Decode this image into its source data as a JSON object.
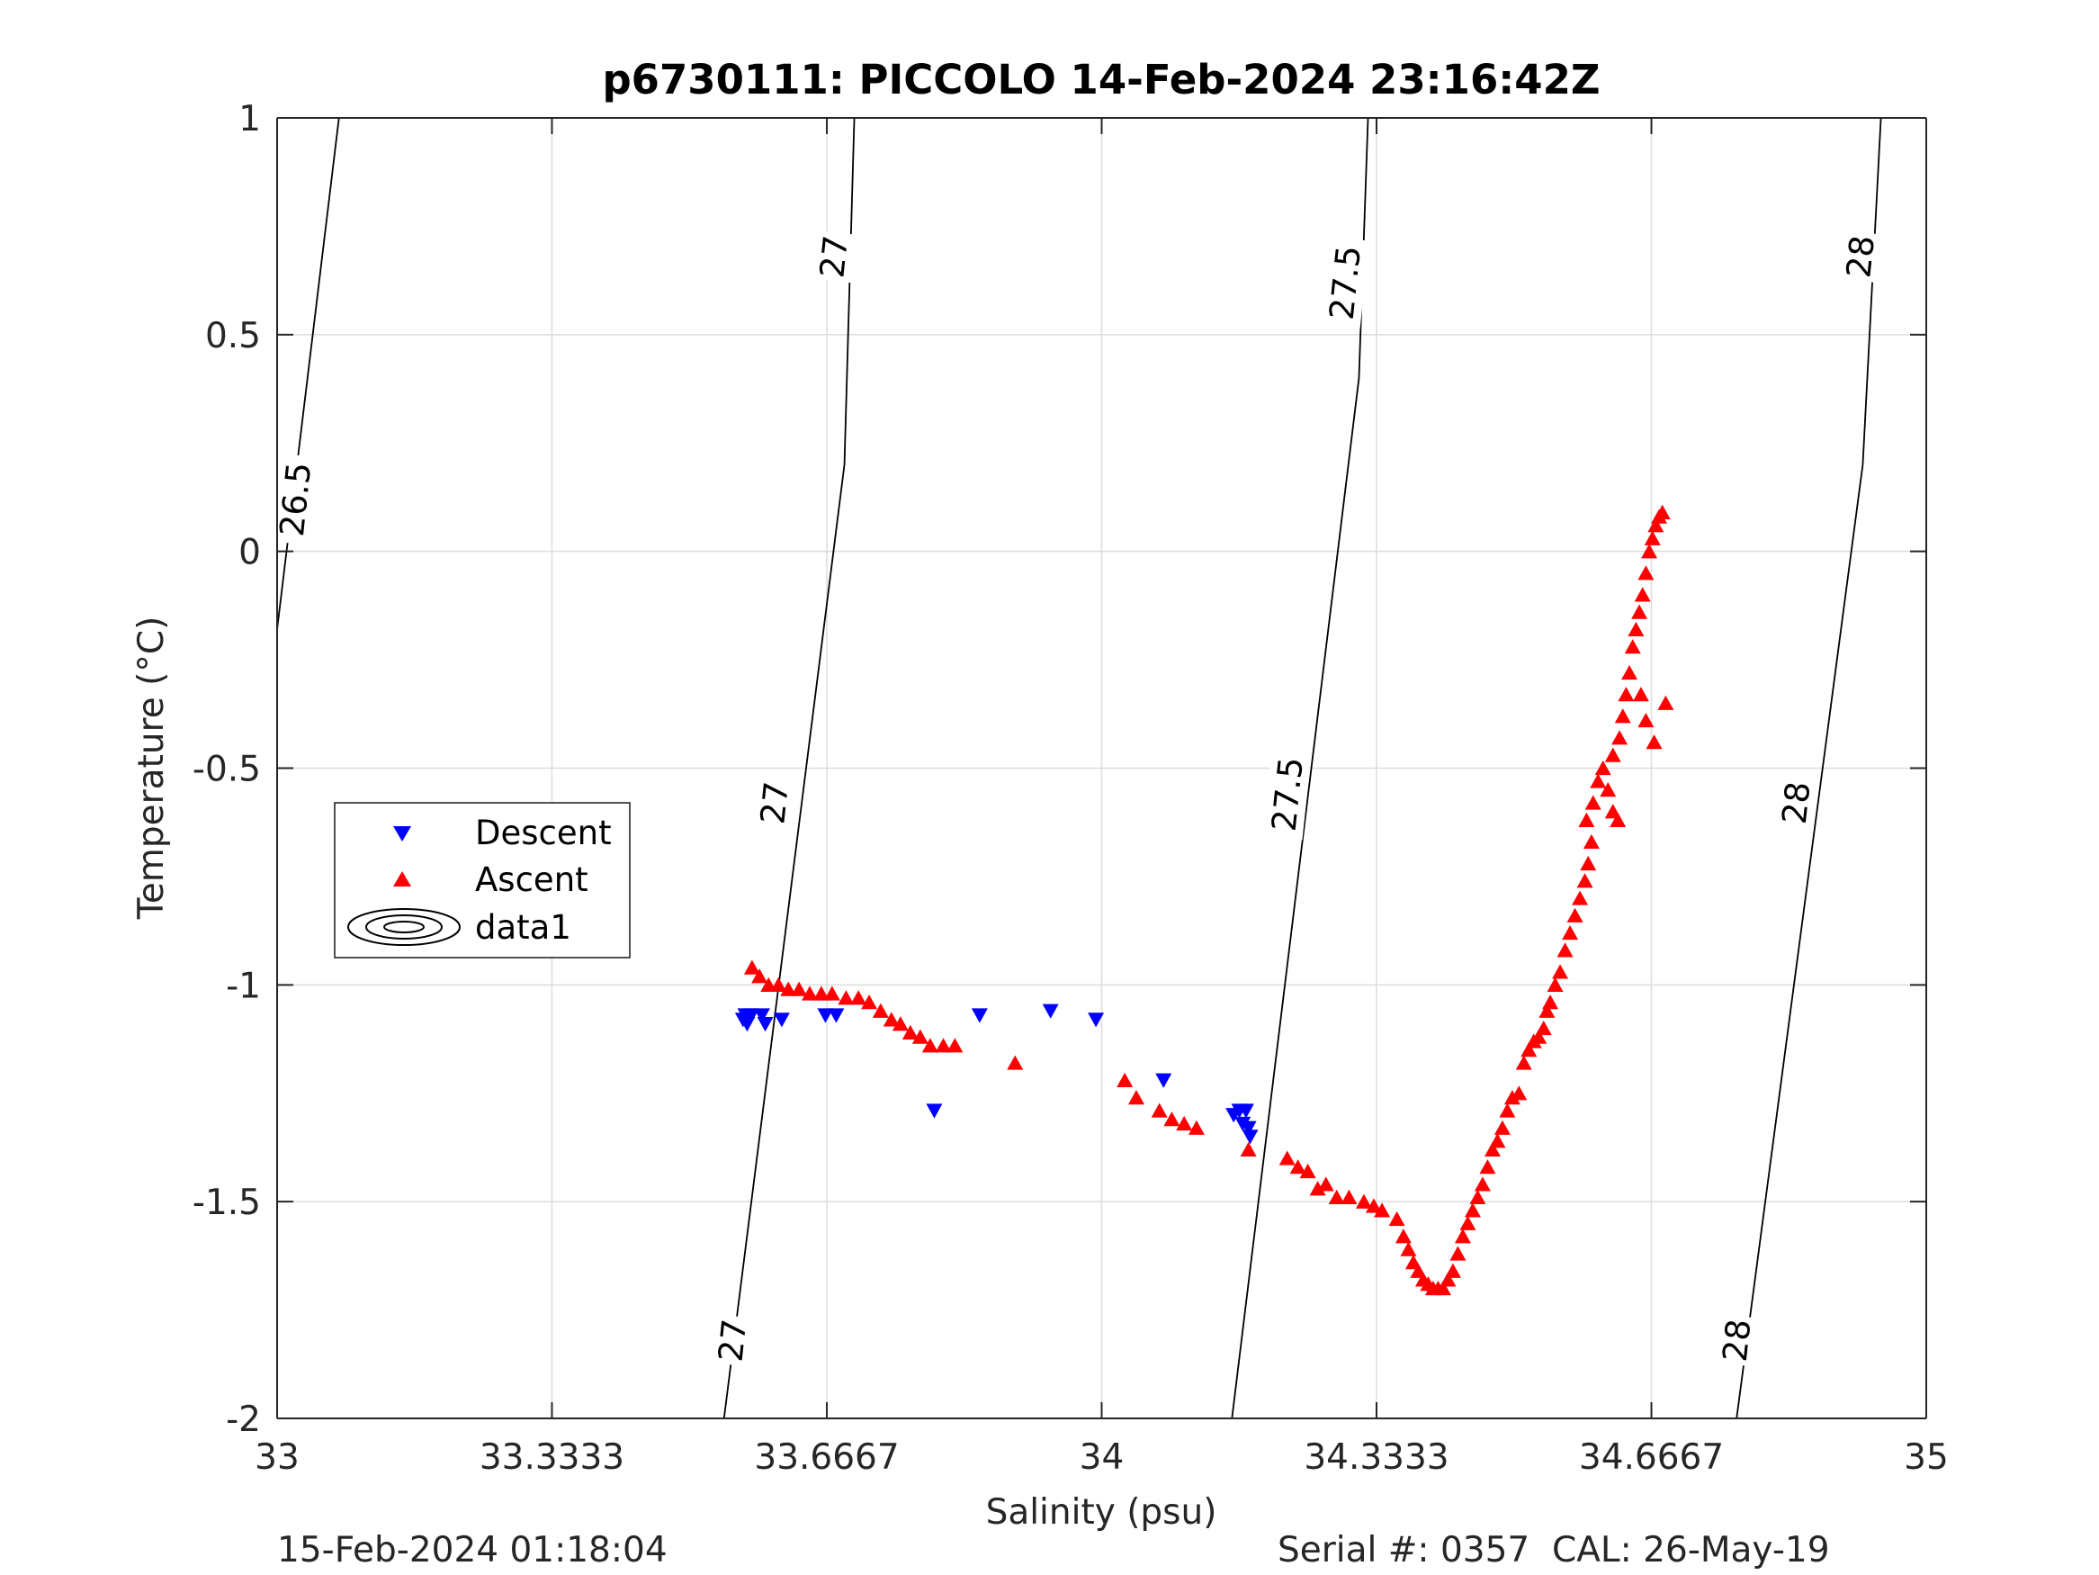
{
  "chart_data": {
    "type": "scatter",
    "title": "p6730111: PICCOLO 14-Feb-2024 23:16:42Z",
    "xlabel": "Salinity (psu)",
    "ylabel": "Temperature (°C)",
    "xlim": [
      33,
      35
    ],
    "ylim": [
      -2,
      1
    ],
    "xticks": [
      33,
      33.3333,
      33.6667,
      34,
      34.3333,
      34.6667,
      35
    ],
    "xtick_labels": [
      "33",
      "33.3333",
      "33.6667",
      "34",
      "34.3333",
      "34.6667",
      "35"
    ],
    "yticks": [
      -2,
      -1.5,
      -1,
      -0.5,
      0,
      0.5,
      1
    ],
    "ytick_labels": [
      "-2",
      "-1.5",
      "-1",
      "-0.5",
      "0",
      "0.5",
      "1"
    ],
    "grid": true,
    "legend_position": "center-left",
    "legend": [
      "Descent",
      "Ascent",
      "data1"
    ],
    "colors": {
      "descent": "#0000ff",
      "ascent": "#ff0000",
      "contour": "#000000",
      "grid": "#dcdcdc",
      "axis": "#262626"
    },
    "contours": [
      {
        "level": "26.5",
        "points": [
          [
            33.0,
            -0.18
          ],
          [
            33.075,
            1.0
          ]
        ]
      },
      {
        "level": "27",
        "points": [
          [
            33.542,
            -2.0
          ],
          [
            33.688,
            0.2
          ],
          [
            33.7,
            1.0
          ]
        ]
      },
      {
        "level": "27.5",
        "points": [
          [
            34.158,
            -2.0
          ],
          [
            34.312,
            0.4
          ],
          [
            34.323,
            1.0
          ]
        ]
      },
      {
        "level": "28",
        "points": [
          [
            34.77,
            -2.0
          ],
          [
            34.923,
            0.2
          ],
          [
            34.945,
            1.0
          ]
        ]
      }
    ],
    "contour_labels": [
      {
        "text": "26.5",
        "x": 33.022,
        "y": 0.12
      },
      {
        "text": "27",
        "x": 33.675,
        "y": 0.68
      },
      {
        "text": "27",
        "x": 33.603,
        "y": -0.58
      },
      {
        "text": "27",
        "x": 33.552,
        "y": -1.82
      },
      {
        "text": "27.5",
        "x": 34.295,
        "y": 0.62
      },
      {
        "text": "27.5",
        "x": 34.225,
        "y": -0.56
      },
      {
        "text": "28",
        "x": 34.92,
        "y": 0.68
      },
      {
        "text": "28",
        "x": 34.842,
        "y": -0.58
      },
      {
        "text": "28",
        "x": 34.77,
        "y": -1.82
      }
    ],
    "series": [
      {
        "name": "Descent",
        "marker": "triangle-down",
        "points": [
          [
            33.568,
            -1.07
          ],
          [
            33.572,
            -1.08
          ],
          [
            33.57,
            -1.09
          ],
          [
            33.575,
            -1.07
          ],
          [
            33.565,
            -1.08
          ],
          [
            33.588,
            -1.07
          ],
          [
            33.592,
            -1.09
          ],
          [
            33.612,
            -1.08
          ],
          [
            33.665,
            -1.07
          ],
          [
            33.678,
            -1.07
          ],
          [
            33.797,
            -1.29
          ],
          [
            33.852,
            -1.07
          ],
          [
            33.938,
            -1.06
          ],
          [
            33.993,
            -1.08
          ],
          [
            34.075,
            -1.22
          ],
          [
            34.16,
            -1.3
          ],
          [
            34.167,
            -1.29
          ],
          [
            34.175,
            -1.29
          ],
          [
            34.171,
            -1.32
          ],
          [
            34.178,
            -1.33
          ],
          [
            34.18,
            -1.35
          ]
        ]
      },
      {
        "name": "Ascent",
        "marker": "triangle-up",
        "points": [
          [
            33.576,
            -0.96
          ],
          [
            33.585,
            -0.98
          ],
          [
            33.596,
            -1.0
          ],
          [
            33.608,
            -1.0
          ],
          [
            33.62,
            -1.01
          ],
          [
            33.633,
            -1.01
          ],
          [
            33.646,
            -1.02
          ],
          [
            33.66,
            -1.02
          ],
          [
            33.673,
            -1.02
          ],
          [
            33.69,
            -1.03
          ],
          [
            33.705,
            -1.03
          ],
          [
            33.718,
            -1.04
          ],
          [
            33.732,
            -1.06
          ],
          [
            33.745,
            -1.08
          ],
          [
            33.756,
            -1.09
          ],
          [
            33.768,
            -1.11
          ],
          [
            33.78,
            -1.12
          ],
          [
            33.792,
            -1.14
          ],
          [
            33.808,
            -1.14
          ],
          [
            33.822,
            -1.14
          ],
          [
            33.895,
            -1.18
          ],
          [
            34.028,
            -1.22
          ],
          [
            34.042,
            -1.26
          ],
          [
            34.07,
            -1.29
          ],
          [
            34.085,
            -1.31
          ],
          [
            34.1,
            -1.32
          ],
          [
            34.115,
            -1.33
          ],
          [
            34.178,
            -1.38
          ],
          [
            34.225,
            -1.4
          ],
          [
            34.238,
            -1.42
          ],
          [
            34.25,
            -1.43
          ],
          [
            34.262,
            -1.47
          ],
          [
            34.272,
            -1.46
          ],
          [
            34.285,
            -1.49
          ],
          [
            34.3,
            -1.49
          ],
          [
            34.318,
            -1.5
          ],
          [
            34.33,
            -1.51
          ],
          [
            34.34,
            -1.52
          ],
          [
            34.358,
            -1.54
          ],
          [
            34.366,
            -1.58
          ],
          [
            34.372,
            -1.61
          ],
          [
            34.378,
            -1.64
          ],
          [
            34.384,
            -1.66
          ],
          [
            34.39,
            -1.68
          ],
          [
            34.396,
            -1.69
          ],
          [
            34.402,
            -1.7
          ],
          [
            34.408,
            -1.7
          ],
          [
            34.414,
            -1.7
          ],
          [
            34.42,
            -1.68
          ],
          [
            34.426,
            -1.66
          ],
          [
            34.432,
            -1.62
          ],
          [
            34.438,
            -1.58
          ],
          [
            34.444,
            -1.55
          ],
          [
            34.45,
            -1.52
          ],
          [
            34.456,
            -1.49
          ],
          [
            34.462,
            -1.46
          ],
          [
            34.468,
            -1.42
          ],
          [
            34.474,
            -1.38
          ],
          [
            34.48,
            -1.36
          ],
          [
            34.486,
            -1.33
          ],
          [
            34.492,
            -1.29
          ],
          [
            34.498,
            -1.26
          ],
          [
            34.506,
            -1.25
          ],
          [
            34.512,
            -1.18
          ],
          [
            34.518,
            -1.15
          ],
          [
            34.524,
            -1.13
          ],
          [
            34.53,
            -1.12
          ],
          [
            34.536,
            -1.1
          ],
          [
            34.54,
            -1.06
          ],
          [
            34.544,
            -1.04
          ],
          [
            34.55,
            -1.0
          ],
          [
            34.556,
            -0.97
          ],
          [
            34.562,
            -0.92
          ],
          [
            34.568,
            -0.88
          ],
          [
            34.574,
            -0.84
          ],
          [
            34.58,
            -0.8
          ],
          [
            34.586,
            -0.76
          ],
          [
            34.59,
            -0.72
          ],
          [
            34.594,
            -0.67
          ],
          [
            34.588,
            -0.62
          ],
          [
            34.596,
            -0.58
          ],
          [
            34.602,
            -0.53
          ],
          [
            34.608,
            -0.5
          ],
          [
            34.614,
            -0.55
          ],
          [
            34.62,
            -0.6
          ],
          [
            34.626,
            -0.62
          ],
          [
            34.62,
            -0.47
          ],
          [
            34.628,
            -0.43
          ],
          [
            34.632,
            -0.38
          ],
          [
            34.636,
            -0.33
          ],
          [
            34.64,
            -0.28
          ],
          [
            34.644,
            -0.22
          ],
          [
            34.648,
            -0.18
          ],
          [
            34.652,
            -0.14
          ],
          [
            34.656,
            -0.1
          ],
          [
            34.66,
            -0.05
          ],
          [
            34.664,
            0.0
          ],
          [
            34.668,
            0.03
          ],
          [
            34.672,
            0.06
          ],
          [
            34.676,
            0.08
          ],
          [
            34.68,
            0.09
          ],
          [
            34.67,
            -0.44
          ],
          [
            34.684,
            -0.35
          ],
          [
            34.654,
            -0.33
          ],
          [
            34.66,
            -0.39
          ]
        ]
      }
    ]
  },
  "footer": {
    "timestamp": "15-Feb-2024 01:18:04",
    "serial_cal": "Serial #: 0357  CAL: 26-May-19"
  }
}
